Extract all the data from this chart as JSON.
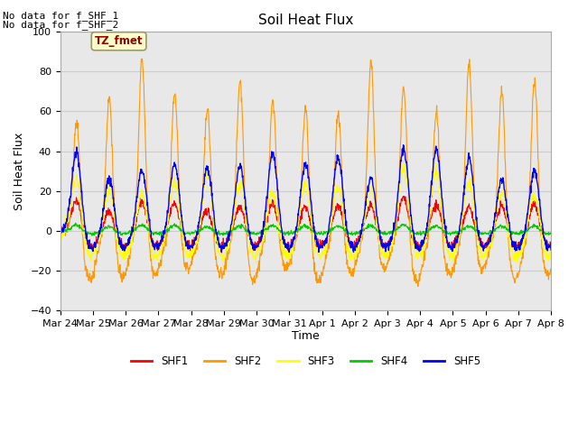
{
  "title": "Soil Heat Flux",
  "ylabel": "Soil Heat Flux",
  "xlabel": "Time",
  "ylim": [
    -40,
    100
  ],
  "annotation_line1": "No data for f_SHF_1",
  "annotation_line2": "No data for f_SHF_2",
  "tz_label": "TZ_fmet",
  "colors": {
    "SHF1": "#ff0000",
    "SHF2": "#ff9900",
    "SHF3": "#ffff00",
    "SHF4": "#00cc00",
    "SHF5": "#0000ff"
  },
  "legend_labels": [
    "SHF1",
    "SHF2",
    "SHF3",
    "SHF4",
    "SHF5"
  ],
  "xtick_labels": [
    "Mar 24",
    "Mar 25",
    "Mar 26",
    "Mar 27",
    "Mar 28",
    "Mar 29",
    "Mar 30",
    "Mar 31",
    "Apr 1",
    "Apr 2",
    "Apr 3",
    "Apr 4",
    "Apr 5",
    "Apr 6",
    "Apr 7",
    "Apr 8"
  ],
  "ytick_values": [
    -40,
    -20,
    0,
    20,
    40,
    60,
    80,
    100
  ],
  "grid_color": "#cccccc",
  "background_color": "#e8e8e8"
}
